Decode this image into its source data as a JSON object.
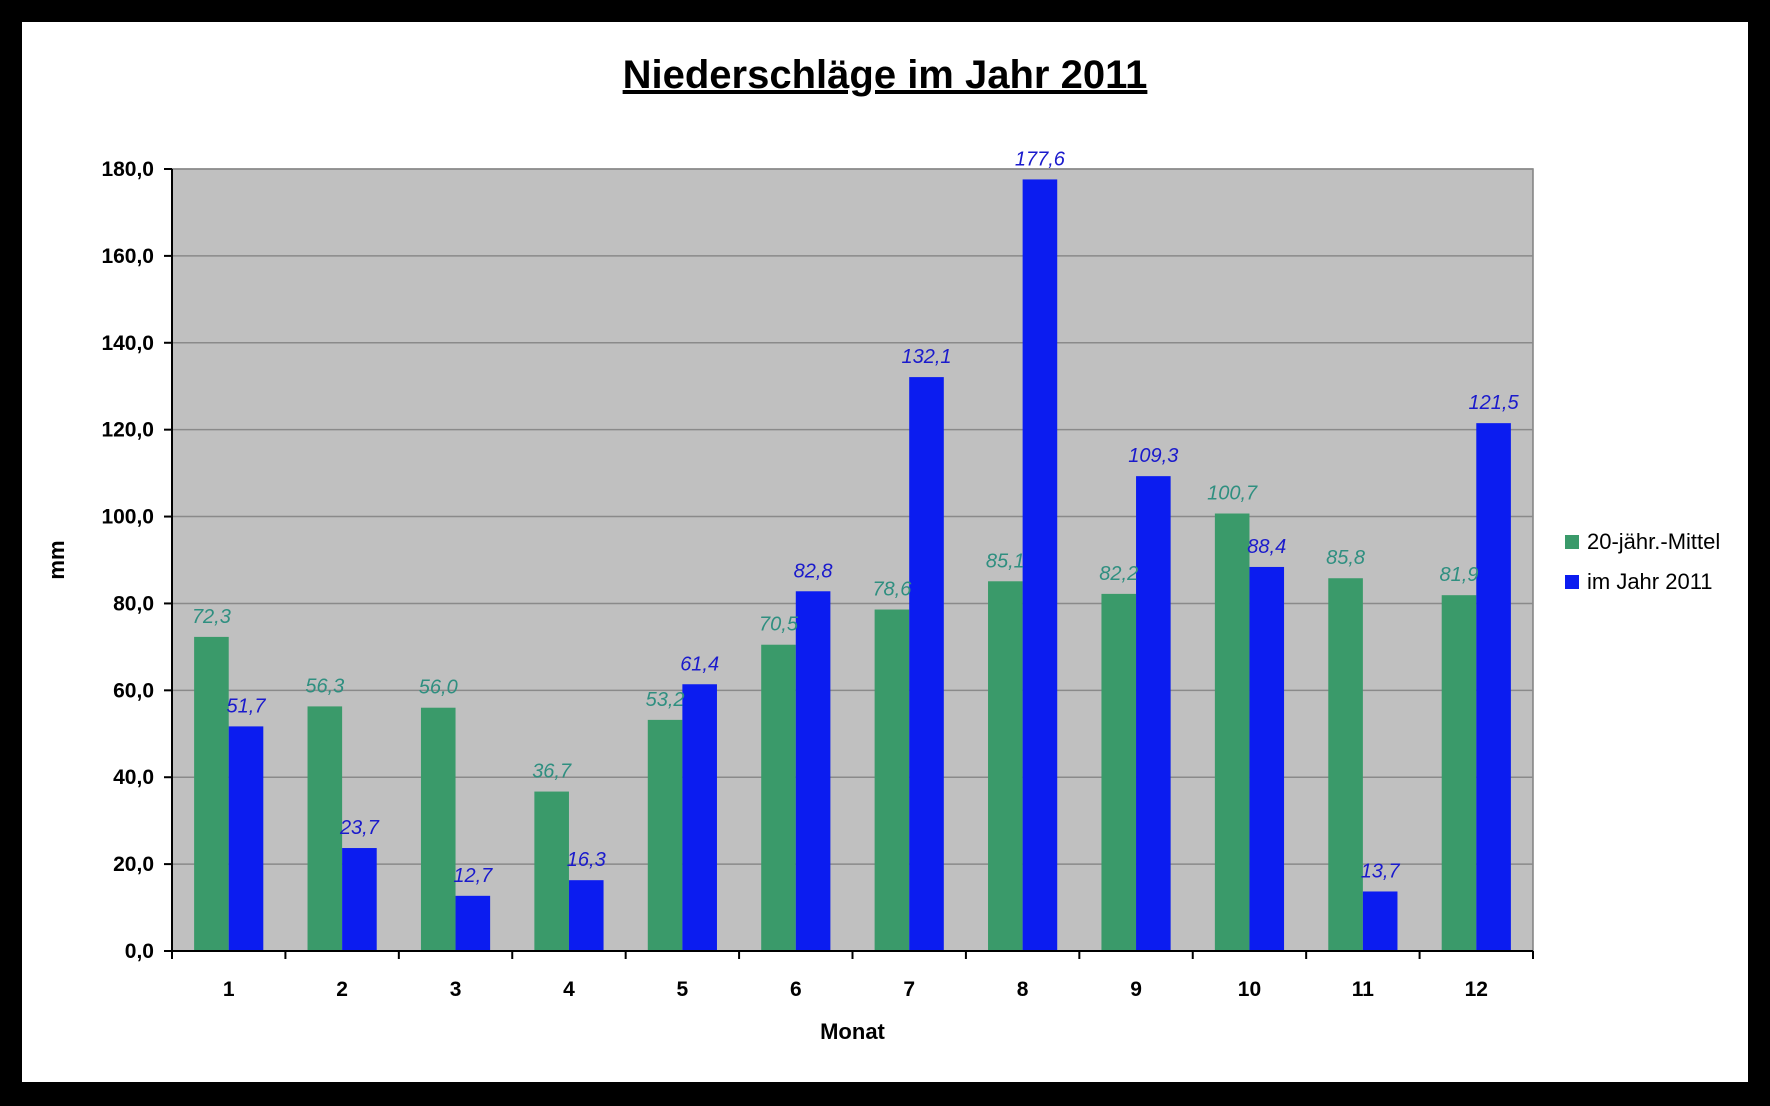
{
  "chart_data": {
    "type": "bar",
    "title": "Niederschläge im Jahr 2011",
    "xlabel": "Monat",
    "ylabel": "mm",
    "categories": [
      "1",
      "2",
      "3",
      "4",
      "5",
      "6",
      "7",
      "8",
      "9",
      "10",
      "11",
      "12"
    ],
    "ylim": [
      0,
      180
    ],
    "ytick_step": 20,
    "ytick_labels": [
      "0,0",
      "20,0",
      "40,0",
      "60,0",
      "80,0",
      "100,0",
      "120,0",
      "140,0",
      "160,0",
      "180,0"
    ],
    "grid": true,
    "legend_position": "right",
    "plot_background": "#c0c0c0",
    "series": [
      {
        "name": "20-jähr.-Mittel",
        "color": "#3a9a6a",
        "label_color": "#2f8f80",
        "values": [
          72.3,
          56.3,
          56.0,
          36.7,
          53.2,
          70.5,
          78.6,
          85.1,
          82.2,
          100.7,
          85.8,
          81.9
        ],
        "labels": [
          "72,3",
          "56,3",
          "56,0",
          "36,7",
          "53,2",
          "70,5",
          "78,6",
          "85,1",
          "82,2",
          "100,7",
          "85,8",
          "81,9"
        ]
      },
      {
        "name": "im Jahr 2011",
        "color": "#0b1cf0",
        "label_color": "#1a1acc",
        "values": [
          51.7,
          23.7,
          12.7,
          16.3,
          61.4,
          82.8,
          132.1,
          177.6,
          109.3,
          88.4,
          13.7,
          121.5
        ],
        "labels": [
          "51,7",
          "23,7",
          "12,7",
          "16,3",
          "61,4",
          "82,8",
          "132,1",
          "177,6",
          "109,3",
          "88,4",
          "13,7",
          "121,5"
        ]
      }
    ]
  }
}
